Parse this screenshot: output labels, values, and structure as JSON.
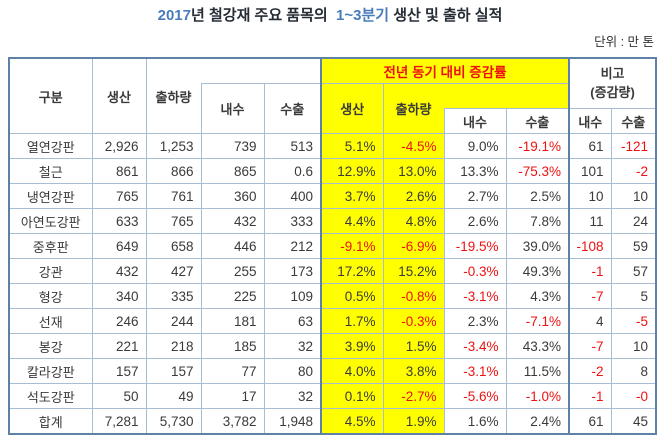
{
  "colors": {
    "accent_blue": "#4a7cba",
    "negative_red": "#ee1111",
    "highlight_yellow": "#ffff00",
    "border_thick": "#5d82a6",
    "border_thin": "#a6bdd4"
  },
  "title": {
    "part1": "2017",
    "part2": "년 철강재 주요 품목의  ",
    "part3": "1~3분기",
    "part4": " 생산 및 출하 실적"
  },
  "unit_label": "단위 : 만 톤",
  "table": {
    "header": {
      "category": "구분",
      "production": "생산",
      "shipment": "출하량",
      "domestic": "내수",
      "export": "수출",
      "yoy_group": "전년 동기 대비 증감률",
      "yoy_production": "생산",
      "yoy_shipment": "출하량",
      "yoy_domestic": "내수",
      "yoy_export": "수출",
      "note_title_line1": "비고",
      "note_title_line2": "(증감량)",
      "note_domestic": "내수",
      "note_export": "수출"
    },
    "rows": [
      {
        "name": "열연강판",
        "values": [
          "2,926",
          "1,253",
          "739",
          "513",
          "5.1%",
          "-4.5%",
          "9.0%",
          "-19.1%",
          "61",
          "-121"
        ]
      },
      {
        "name": "철근",
        "values": [
          "861",
          "866",
          "865",
          "0.6",
          "12.9%",
          "13.0%",
          "13.3%",
          "-75.3%",
          "101",
          "-2"
        ]
      },
      {
        "name": "냉연강판",
        "values": [
          "765",
          "761",
          "360",
          "400",
          "3.7%",
          "2.6%",
          "2.7%",
          "2.5%",
          "10",
          "10"
        ]
      },
      {
        "name": "아연도강판",
        "values": [
          "633",
          "765",
          "432",
          "333",
          "4.4%",
          "4.8%",
          "2.6%",
          "7.8%",
          "11",
          "24"
        ]
      },
      {
        "name": "중후판",
        "values": [
          "649",
          "658",
          "446",
          "212",
          "-9.1%",
          "-6.9%",
          "-19.5%",
          "39.0%",
          "-108",
          "59"
        ]
      },
      {
        "name": "강관",
        "values": [
          "432",
          "427",
          "255",
          "173",
          "17.2%",
          "15.2%",
          "-0.3%",
          "49.3%",
          "-1",
          "57"
        ]
      },
      {
        "name": "형강",
        "values": [
          "340",
          "335",
          "225",
          "109",
          "0.5%",
          "-0.8%",
          "-3.1%",
          "4.3%",
          "-7",
          "5"
        ]
      },
      {
        "name": "선재",
        "values": [
          "246",
          "244",
          "181",
          "63",
          "1.7%",
          "-0.3%",
          "2.3%",
          "-7.1%",
          "4",
          "-5"
        ]
      },
      {
        "name": "봉강",
        "values": [
          "221",
          "218",
          "185",
          "32",
          "3.9%",
          "1.5%",
          "-3.4%",
          "43.3%",
          "-7",
          "10"
        ]
      },
      {
        "name": "칼라강판",
        "values": [
          "157",
          "157",
          "77",
          "80",
          "4.0%",
          "3.8%",
          "-3.1%",
          "11.5%",
          "-2",
          "8"
        ]
      },
      {
        "name": "석도강판",
        "values": [
          "50",
          "49",
          "17",
          "32",
          "0.1%",
          "-2.7%",
          "-5.6%",
          "-1.0%",
          "-1",
          "-0"
        ]
      },
      {
        "name": "합계",
        "values": [
          "7,281",
          "5,730",
          "3,782",
          "1,948",
          "4.5%",
          "1.9%",
          "1.6%",
          "2.4%",
          "61",
          "45"
        ]
      }
    ]
  }
}
